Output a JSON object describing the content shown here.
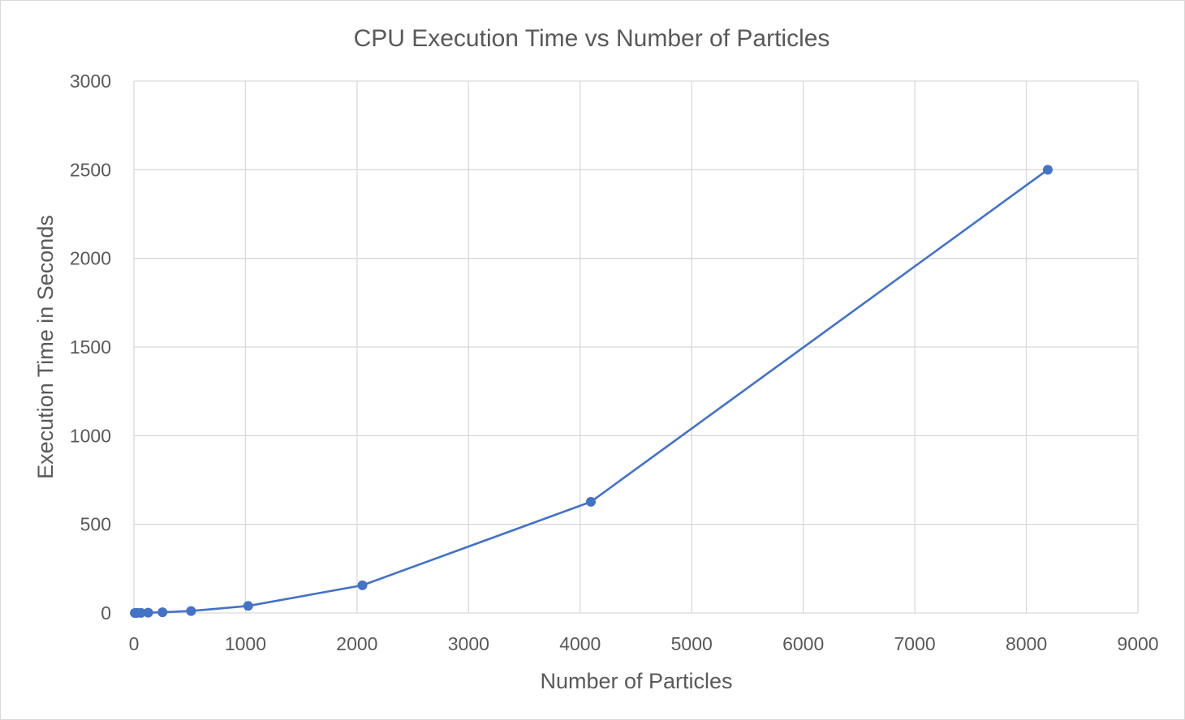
{
  "chart_data": {
    "type": "scatter",
    "title": "CPU Execution Time vs Number of Particles",
    "xlabel": "Number of Particles",
    "ylabel": "Execution Time in Seconds",
    "xlim": [
      0,
      9000
    ],
    "ylim": [
      0,
      3000
    ],
    "xticks": [
      0,
      1000,
      2000,
      3000,
      4000,
      5000,
      6000,
      7000,
      8000,
      9000
    ],
    "yticks": [
      0,
      500,
      1000,
      1500,
      2000,
      2500,
      3000
    ],
    "grid": true,
    "legend": "none",
    "series": [
      {
        "x": [
          8,
          16,
          32,
          64,
          128,
          256,
          512,
          1024,
          2048,
          4096,
          8192
        ],
        "y": [
          0.1,
          0.2,
          0.4,
          0.7,
          1.5,
          4,
          11,
          40,
          156,
          627,
          2500
        ],
        "color": "#4472c4",
        "line": true,
        "markers": true
      }
    ]
  }
}
